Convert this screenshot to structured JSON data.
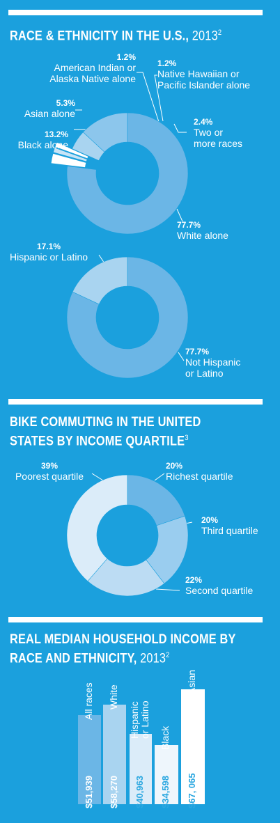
{
  "chart_data": [
    {
      "type": "pie",
      "title": "RACE & ETHNICITY IN THE U.S.,",
      "title_year": "2013",
      "title_note": "2",
      "slices": [
        {
          "name": "White alone",
          "pct_label": "77.7%",
          "value": 77.7,
          "color": "#6bb6e6"
        },
        {
          "name": "Two or more races",
          "pct_label": "2.4%",
          "value": 2.4,
          "color": "#ffffff"
        },
        {
          "name": "Native Hawaiian or Pacific Islander alone",
          "pct_label": "1.2%",
          "value": 1.2,
          "color": "#c8e4f6"
        },
        {
          "name": "American Indian or Alaska Native alone",
          "pct_label": "1.2%",
          "value": 1.2,
          "color": "#ffffff"
        },
        {
          "name": "Asian alone",
          "pct_label": "5.3%",
          "value": 5.3,
          "color": "#a9d4f0"
        },
        {
          "name": "Black alone",
          "pct_label": "13.2%",
          "value": 13.2,
          "color": "#8cc6ec"
        }
      ],
      "labels": {
        "american_indian": {
          "pct": "1.2%",
          "line1": "American Indian or",
          "line2": "Alaska Native alone"
        },
        "native_hawaiian": {
          "pct": "1.2%",
          "line1": "Native Hawaiian or",
          "line2": "Pacific Islander alone"
        },
        "asian": {
          "pct": "5.3%",
          "line1": "Asian alone"
        },
        "black": {
          "pct": "13.2%",
          "line1": "Black alone"
        },
        "two_or_more": {
          "pct": "2.4%",
          "line1": "Two or",
          "line2": "more races"
        },
        "white": {
          "pct": "77.7%",
          "line1": "White alone"
        }
      }
    },
    {
      "type": "pie",
      "slices": [
        {
          "name": "Not Hispanic or Latino",
          "pct_label": "77.7%",
          "value": 77.7,
          "color": "#6bb6e6"
        },
        {
          "name": "Hispanic or Latino",
          "pct_label": "17.1%",
          "value": 17.1,
          "color": "#a9d4f0"
        }
      ],
      "labels": {
        "hispanic": {
          "pct": "17.1%",
          "line1": "Hispanic or Latino"
        },
        "not_hispanic": {
          "pct": "77.7%",
          "line1": "Not Hispanic",
          "line2": "or Latino"
        }
      }
    },
    {
      "type": "pie",
      "title_line1": "BIKE COMMUTING IN THE UNITED",
      "title_line2": "STATES BY INCOME QUARTILE",
      "title_note": "3",
      "slices": [
        {
          "name": "Richest quartile",
          "pct_label": "20%",
          "value": 20,
          "color": "#6bb6e6"
        },
        {
          "name": "Third quartile",
          "pct_label": "20%",
          "value": 20,
          "color": "#9acdef"
        },
        {
          "name": "Second quartile",
          "pct_label": "22%",
          "value": 22,
          "color": "#bcdcf3"
        },
        {
          "name": "Poorest quartile",
          "pct_label": "39%",
          "value": 39,
          "color": "#dbecf9"
        }
      ],
      "labels": {
        "poorest": {
          "pct": "39%",
          "line1": "Poorest quartile"
        },
        "richest": {
          "pct": "20%",
          "line1": "Richest quartile"
        },
        "third": {
          "pct": "20%",
          "line1": "Third quartile"
        },
        "second": {
          "pct": "22%",
          "line1": "Second quartile"
        }
      }
    },
    {
      "type": "bar",
      "title_line1": "REAL MEDIAN HOUSEHOLD INCOME BY",
      "title_line2": "RACE AND ETHNICITY,",
      "title_year": "2013",
      "title_note": "2",
      "categories": [
        "All races",
        "White",
        "Hispanic or Latino",
        "Black",
        "Asian"
      ],
      "category_lines": [
        [
          "All races"
        ],
        [
          "White"
        ],
        [
          "Hispanic",
          "or Latino"
        ],
        [
          "Black"
        ],
        [
          "Asian"
        ]
      ],
      "values": [
        51939,
        58270,
        40963,
        34598,
        67065
      ],
      "value_labels": [
        "$51,939",
        "$58,270",
        "$40,963",
        "$34,598",
        "$67, 065"
      ],
      "colors": [
        "#6bb6e6",
        "#a9d4f0",
        "#dbecf9",
        "#eef6fc",
        "#ffffff"
      ]
    }
  ]
}
